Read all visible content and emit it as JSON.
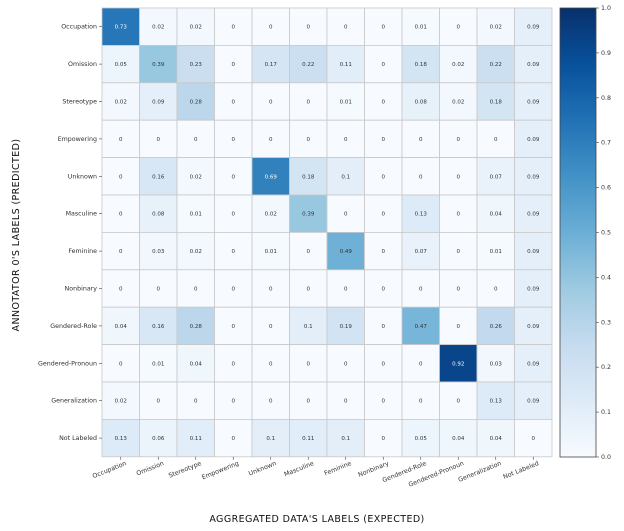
{
  "chart_data": {
    "type": "heatmap",
    "title": "",
    "xlabel": "AGGREGATED DATA'S LABELS (EXPECTED)",
    "ylabel": "ANNOTATOR 0'S LABELS (PREDICTED)",
    "x_categories": [
      "Occupation",
      "Omission",
      "Stereotype",
      "Empowering",
      "Unknown",
      "Masculine",
      "Feminine",
      "Nonbinary",
      "Gendered-Role",
      "Gendered-Pronoun",
      "Generalization",
      "Not Labeled"
    ],
    "y_categories": [
      "Occupation",
      "Omission",
      "Stereotype",
      "Empowering",
      "Unknown",
      "Masculine",
      "Feminine",
      "Nonbinary",
      "Gendered-Role",
      "Gendered-Pronoun",
      "Generalization",
      "Not Labeled"
    ],
    "values": [
      [
        0.73,
        0.02,
        0.02,
        0,
        0,
        0,
        0,
        0,
        0.01,
        0,
        0.02,
        0.09
      ],
      [
        0.05,
        0.39,
        0.23,
        0,
        0.17,
        0.22,
        0.11,
        0,
        0.18,
        0.02,
        0.22,
        0.09
      ],
      [
        0.02,
        0.09,
        0.28,
        0,
        0,
        0,
        0.01,
        0,
        0.08,
        0.02,
        0.18,
        0.09
      ],
      [
        0,
        0,
        0,
        0,
        0,
        0,
        0,
        0,
        0,
        0,
        0,
        0.09
      ],
      [
        0,
        0.16,
        0.02,
        0,
        0.69,
        0.18,
        0.1,
        0,
        0,
        0,
        0.07,
        0.09
      ],
      [
        0,
        0.08,
        0.01,
        0,
        0.02,
        0.39,
        0,
        0,
        0.13,
        0,
        0.04,
        0.09
      ],
      [
        0,
        0.03,
        0.02,
        0,
        0.01,
        0,
        0.49,
        0,
        0.07,
        0,
        0.01,
        0.09
      ],
      [
        0,
        0,
        0,
        0,
        0,
        0,
        0,
        0,
        0,
        0,
        0,
        0.09
      ],
      [
        0.04,
        0.16,
        0.28,
        0,
        0,
        0.1,
        0.19,
        0,
        0.47,
        0,
        0.26,
        0.09
      ],
      [
        0,
        0.01,
        0.04,
        0,
        0,
        0,
        0,
        0,
        0,
        0.92,
        0.03,
        0.09
      ],
      [
        0.02,
        0,
        0,
        0,
        0,
        0,
        0,
        0,
        0,
        0,
        0.13,
        0.09
      ],
      [
        0.13,
        0.06,
        0.11,
        0,
        0.1,
        0.11,
        0.1,
        0,
        0.05,
        0.04,
        0.04,
        0
      ]
    ],
    "colorbar": {
      "range": [
        0,
        1.0
      ],
      "ticks": [
        "0.0",
        "0.1",
        "0.2",
        "0.3",
        "0.4",
        "0.5",
        "0.6",
        "0.7",
        "0.8",
        "0.9",
        "1.0"
      ],
      "colormap": "Blues",
      "color_low": "#f7fbff",
      "color_high": "#08306b"
    },
    "grid": true
  }
}
